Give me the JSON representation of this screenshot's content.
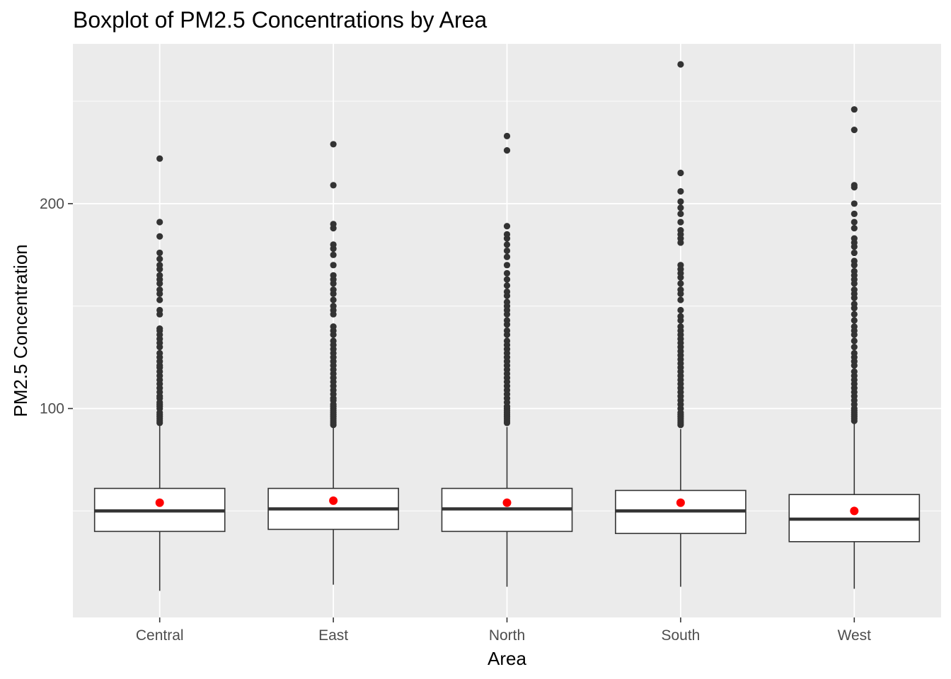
{
  "chart_data": {
    "type": "boxplot",
    "title": "Boxplot of PM2.5 Concentrations by Area",
    "xlabel": "Area",
    "ylabel": "PM2.5 Concentration",
    "ylim": [
      -2,
      278
    ],
    "yticks": [
      100,
      200
    ],
    "grid": true,
    "colors": {
      "panel": "#EBEBEB",
      "grid_major": "#FFFFFF",
      "box_fill": "#FFFFFF",
      "box_line": "#333333",
      "outlier": "#333333",
      "mean_point": "#FF0000"
    },
    "categories": [
      "Central",
      "East",
      "North",
      "South",
      "West"
    ],
    "boxes": [
      {
        "category": "Central",
        "whisker_low": 11,
        "q1": 40,
        "median": 50,
        "q3": 61,
        "whisker_high": 92,
        "mean": 54,
        "outliers": [
          93,
          94,
          95,
          96,
          97,
          98,
          100,
          101,
          102,
          103,
          105,
          106,
          108,
          110,
          112,
          114,
          116,
          118,
          120,
          121,
          123,
          125,
          127,
          130,
          132,
          134,
          136,
          138,
          139,
          146,
          148,
          153,
          156,
          158,
          161,
          163,
          165,
          168,
          170,
          173,
          176,
          184,
          191,
          222
        ]
      },
      {
        "category": "East",
        "whisker_low": 14,
        "q1": 41,
        "median": 51,
        "q3": 61,
        "whisker_high": 91,
        "mean": 55,
        "outliers": [
          92,
          93,
          94,
          95,
          96,
          97,
          98,
          99,
          100,
          101,
          102,
          104,
          105,
          107,
          109,
          111,
          113,
          115,
          117,
          119,
          121,
          123,
          125,
          127,
          129,
          131,
          133,
          136,
          138,
          140,
          146,
          148,
          150,
          153,
          156,
          158,
          161,
          163,
          165,
          170,
          175,
          178,
          180,
          188,
          190,
          209,
          229
        ]
      },
      {
        "category": "North",
        "whisker_low": 13,
        "q1": 40,
        "median": 51,
        "q3": 61,
        "whisker_high": 91,
        "mean": 54,
        "outliers": [
          93,
          94,
          95,
          96,
          97,
          98,
          99,
          100,
          101,
          103,
          105,
          107,
          109,
          111,
          113,
          115,
          117,
          119,
          121,
          123,
          125,
          127,
          129,
          131,
          133,
          136,
          138,
          141,
          143,
          146,
          148,
          150,
          152,
          155,
          157,
          160,
          163,
          166,
          170,
          174,
          177,
          180,
          183,
          185,
          189,
          226,
          233
        ]
      },
      {
        "category": "South",
        "whisker_low": 13,
        "q1": 39,
        "median": 50,
        "q3": 60,
        "whisker_high": 90,
        "mean": 54,
        "outliers": [
          92,
          93,
          94,
          95,
          96,
          97,
          98,
          100,
          102,
          104,
          106,
          108,
          110,
          112,
          114,
          116,
          118,
          120,
          122,
          124,
          126,
          128,
          130,
          132,
          134,
          136,
          138,
          140,
          143,
          145,
          148,
          153,
          156,
          158,
          161,
          164,
          166,
          168,
          170,
          181,
          183,
          185,
          187,
          191,
          195,
          198,
          201,
          206,
          215,
          268
        ]
      },
      {
        "category": "West",
        "whisker_low": 12,
        "q1": 35,
        "median": 46,
        "q3": 58,
        "whisker_high": 93,
        "mean": 50,
        "outliers": [
          94,
          95,
          96,
          97,
          98,
          99,
          100,
          102,
          104,
          106,
          108,
          110,
          112,
          114,
          116,
          118,
          121,
          123,
          125,
          127,
          130,
          133,
          136,
          138,
          140,
          143,
          146,
          149,
          151,
          154,
          156,
          158,
          161,
          163,
          165,
          167,
          170,
          172,
          176,
          179,
          181,
          183,
          188,
          191,
          195,
          200,
          208,
          209,
          236,
          246
        ]
      }
    ]
  }
}
